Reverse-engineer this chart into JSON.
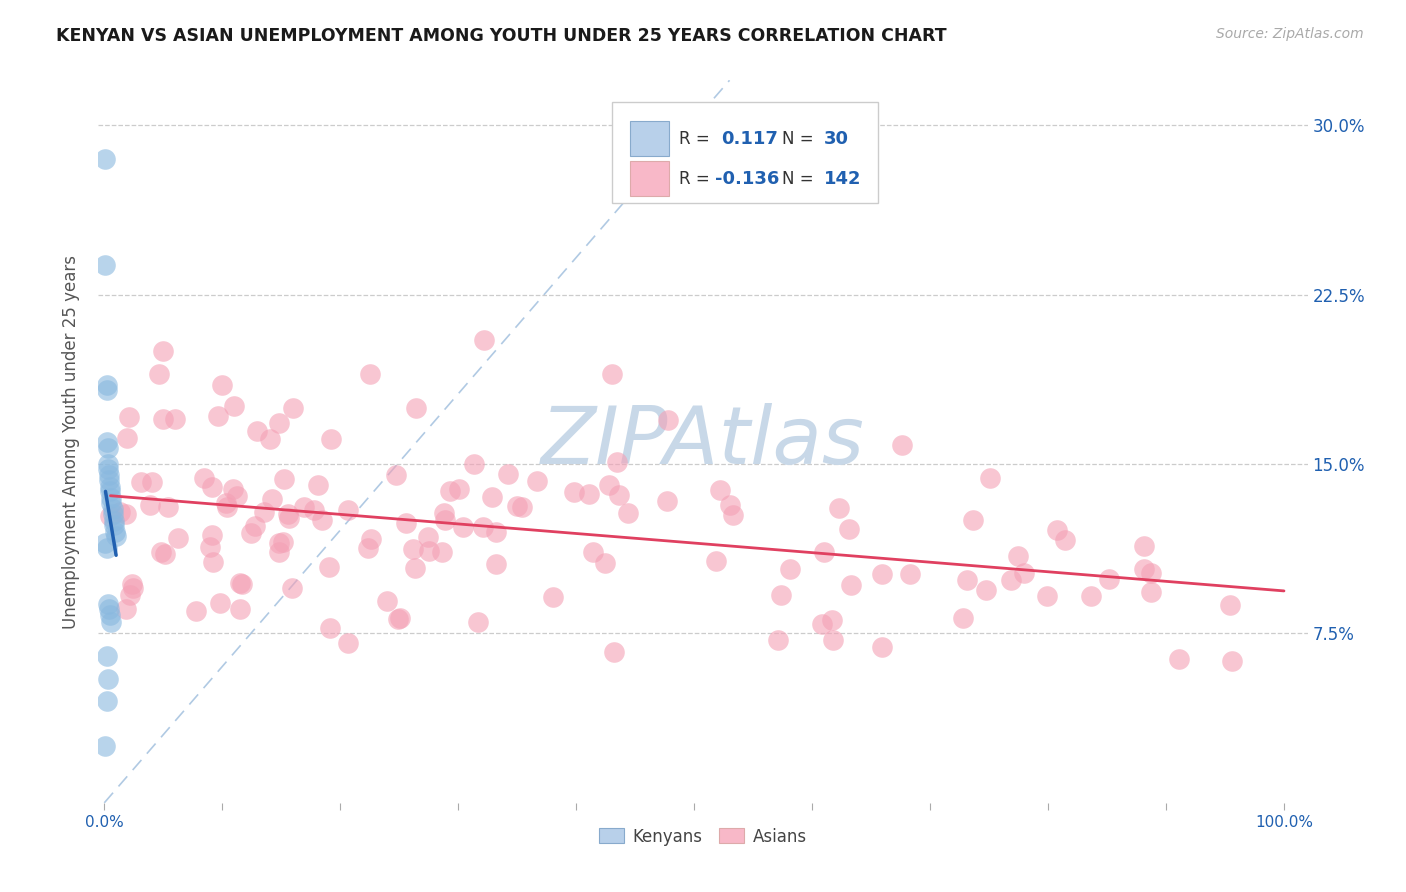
{
  "title": "KENYAN VS ASIAN UNEMPLOYMENT AMONG YOUTH UNDER 25 YEARS CORRELATION CHART",
  "source": "Source: ZipAtlas.com",
  "ylabel": "Unemployment Among Youth under 25 years",
  "ytick_labels": [
    "7.5%",
    "15.0%",
    "22.5%",
    "30.0%"
  ],
  "ytick_vals": [
    0.075,
    0.15,
    0.225,
    0.3
  ],
  "kenyan_color": "#89b8df",
  "asian_color": "#f4a0b5",
  "kenyan_trend_color": "#2060b0",
  "asian_trend_color": "#e04060",
  "dashed_line_color": "#a8c4e0",
  "watermark_color": "#c8d8e8",
  "legend_blue_fill": "#b8d0ea",
  "legend_pink_fill": "#f8b8c8",
  "legend_text_color": "#333333",
  "legend_value_color": "#2060b0",
  "ylim_min": 0.0,
  "ylim_max": 0.32,
  "xlim_min": -0.005,
  "xlim_max": 1.02,
  "kenyan_seed": 42,
  "asian_seed": 77
}
